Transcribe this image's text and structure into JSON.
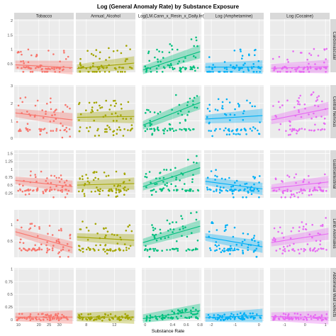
{
  "chart_data": {
    "type": "scatter",
    "title": "Log (General Anomaly Rate) by Substance Exposure",
    "xlabel": "Substance Rate",
    "ylabel": "",
    "grid": true,
    "colors": [
      "#f8766d",
      "#a3a500",
      "#00bf7d",
      "#00b0f6",
      "#e76bf3"
    ],
    "columns": [
      {
        "label": "Tobacco",
        "xlim": [
          8,
          37
        ],
        "ticks": [
          10,
          20,
          25,
          30
        ]
      },
      {
        "label": "Annual_Alcohol",
        "xlim": [
          6.5,
          15
        ],
        "ticks": [
          8,
          12
        ]
      },
      {
        "label": "Log(LM.Cann_x_Resin_x_Daily.Int)",
        "xlim": [
          -0.05,
          0.82
        ],
        "ticks": [
          0.0,
          0.4,
          0.6,
          0.8
        ]
      },
      {
        "label": "Log (Amphetamine)",
        "xlim": [
          -2.3,
          0.2
        ],
        "ticks": [
          -2,
          -1,
          0
        ]
      },
      {
        "label": "Log (Cocaine)",
        "xlim": [
          -1.7,
          1.2
        ],
        "ticks": [
          -1,
          0,
          1
        ]
      }
    ],
    "rows": [
      {
        "label": "Cardiovascular",
        "ylim": [
          0.2,
          2.05
        ],
        "ticks": [
          0.5,
          1.0,
          1.5,
          2.0
        ],
        "fits": [
          [
            0.46,
            0.36
          ],
          [
            0.33,
            0.52
          ],
          [
            0.28,
            0.92
          ],
          [
            0.38,
            0.38
          ],
          [
            0.34,
            0.4
          ]
        ],
        "y_range": [
          0.3,
          1.2
        ]
      },
      {
        "label": "Central Nervous",
        "ylim": [
          0,
          3.05
        ],
        "ticks": [
          0,
          1,
          2,
          3
        ],
        "fits": [
          [
            1.45,
            1.05
          ],
          [
            1.2,
            1.25
          ],
          [
            0.75,
            2.05
          ],
          [
            1.1,
            1.3
          ],
          [
            1.05,
            1.7
          ]
        ],
        "y_range": [
          0.4,
          2.0
        ]
      },
      {
        "label": "Gastrointestinal",
        "ylim": [
          0.1,
          1.6
        ],
        "ticks": [
          0.25,
          0.5,
          0.75,
          1.0,
          1.25,
          1.5
        ],
        "fits": [
          [
            0.65,
            0.45
          ],
          [
            0.5,
            0.55
          ],
          [
            0.45,
            1.05
          ],
          [
            0.62,
            0.38
          ],
          [
            0.4,
            0.6
          ]
        ],
        "y_range": [
          0.3,
          0.9
        ]
      },
      {
        "label": "Limb Anomalies",
        "ylim": [
          0,
          1.45
        ],
        "ticks": [
          0.5,
          1.0
        ],
        "fits": [
          [
            0.78,
            0.3
          ],
          [
            0.62,
            0.52
          ],
          [
            0.45,
            0.95
          ],
          [
            0.62,
            0.32
          ],
          [
            0.45,
            0.72
          ]
        ],
        "y_range": [
          0.2,
          0.9
        ]
      },
      {
        "label": "Abdominal Wall Defects",
        "ylim": [
          -0.03,
          1.02
        ],
        "ticks": [
          0.0,
          0.25,
          0.5,
          0.75,
          1.0
        ],
        "fits": [
          [
            0.05,
            0.05
          ],
          [
            0.05,
            0.05
          ],
          [
            0.02,
            0.18
          ],
          [
            0.04,
            0.08
          ],
          [
            0.06,
            0.04
          ]
        ],
        "y_range": [
          0.0,
          0.1
        ]
      }
    ]
  }
}
